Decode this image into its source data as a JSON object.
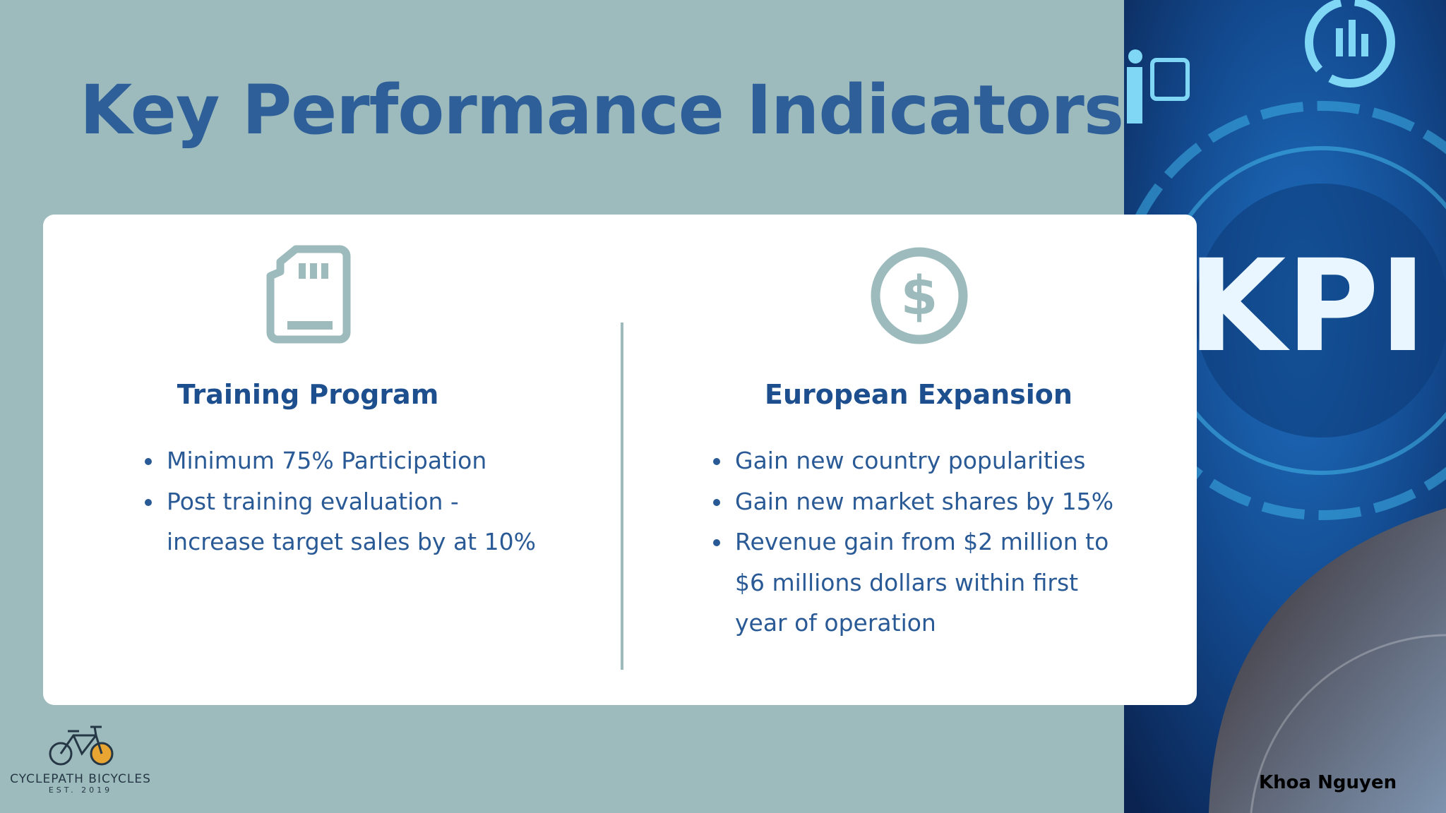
{
  "header": {
    "title": "Key Performance Indicators"
  },
  "sections": [
    {
      "heading": "Training Program",
      "bullets": [
        "Minimum 75% Participation",
        "Post training evaluation - increase target sales by at 10%"
      ]
    },
    {
      "heading": "European Expansion",
      "bullets": [
        "Gain new country popularities",
        "Gain new market shares by 15%",
        "Revenue gain from $2 million to $6 millions dollars within first year of operation"
      ]
    }
  ],
  "image": {
    "text": "KPI"
  },
  "logo": {
    "name": "CYCLEPATH BICYCLES",
    "tagline": "EST. 2019"
  },
  "author": "Khoa Nguyen"
}
